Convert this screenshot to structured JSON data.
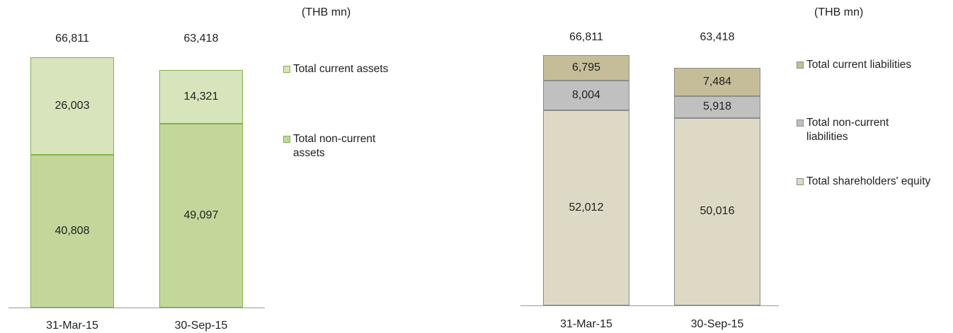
{
  "chart_data": [
    {
      "type": "stacked-bar",
      "unit": "(THB mn)",
      "categories": [
        "31-Mar-15",
        "30-Sep-15"
      ],
      "totals": [
        66811,
        63418
      ],
      "total_labels": [
        "66,811",
        "63,418"
      ],
      "border_color": "#7fb347",
      "series": [
        {
          "name": "Total non-current assets",
          "color": "#c4d79b",
          "values": [
            40808,
            49097
          ],
          "value_labels": [
            "40,808",
            "49,097"
          ]
        },
        {
          "name": "Total current assets",
          "color": "#d8e4bc",
          "values": [
            26003,
            14321
          ],
          "value_labels": [
            "26,003",
            "14,321"
          ]
        }
      ]
    },
    {
      "type": "stacked-bar",
      "unit": "(THB mn)",
      "categories": [
        "31-Mar-15",
        "30-Sep-15"
      ],
      "totals": [
        66811,
        63418
      ],
      "total_labels": [
        "66,811",
        "63,418"
      ],
      "border_color": "#8c8c8c",
      "series": [
        {
          "name": "Total shareholders' equity",
          "color": "#ddd9c4",
          "values": [
            52012,
            50016
          ],
          "value_labels": [
            "52,012",
            "50,016"
          ]
        },
        {
          "name": "Total non-current liabilities",
          "color": "#c0c0c0",
          "values": [
            8004,
            5918
          ],
          "value_labels": [
            "8,004",
            "5,918"
          ]
        },
        {
          "name": "Total current liabilities",
          "color": "#c4bd97",
          "values": [
            6795,
            7484
          ],
          "value_labels": [
            "6,795",
            "7,484"
          ]
        }
      ]
    }
  ]
}
